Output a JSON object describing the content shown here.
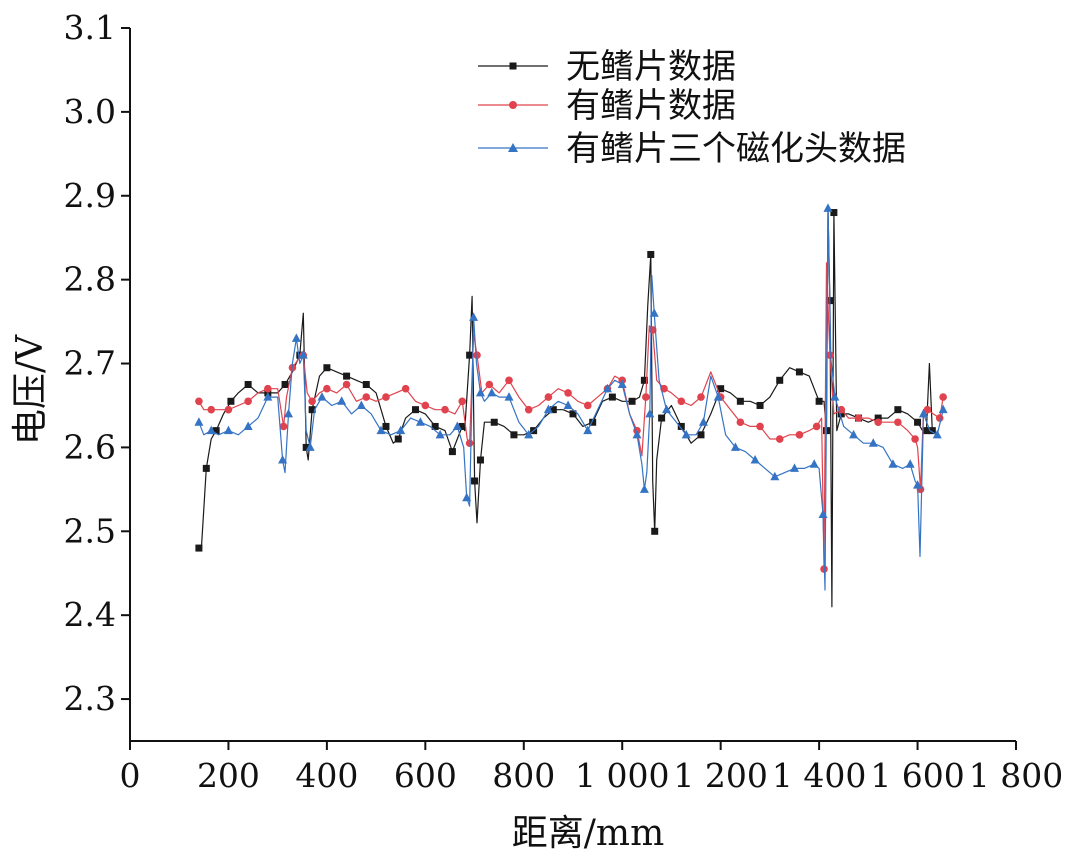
{
  "chart_data": {
    "type": "line",
    "title": "",
    "xlabel": "距离/mm",
    "ylabel": "电压/V",
    "xlim": [
      0,
      1800
    ],
    "ylim": [
      2.25,
      3.1
    ],
    "x_ticks": [
      0,
      200,
      400,
      600,
      800,
      1000,
      1200,
      1400,
      1600,
      1800
    ],
    "x_tick_labels": [
      "0",
      "200",
      "400",
      "600",
      "800",
      "1 000",
      "1 200",
      "1 400",
      "1 600",
      "1 800"
    ],
    "y_ticks": [
      2.3,
      2.4,
      2.5,
      2.6,
      2.7,
      2.8,
      2.9,
      3.0,
      3.1
    ],
    "y_tick_labels": [
      "2.3",
      "2.4",
      "2.5",
      "2.6",
      "2.7",
      "2.8",
      "2.9",
      "3.0",
      "3.1"
    ],
    "legend_position": "top-right",
    "series": [
      {
        "name": "无鳍片数据",
        "color": "#1a1a1a",
        "marker": "square",
        "x": [
          140,
          145,
          155,
          165,
          175,
          190,
          205,
          220,
          240,
          260,
          280,
          300,
          315,
          330,
          345,
          352,
          358,
          362,
          370,
          385,
          400,
          420,
          440,
          460,
          480,
          500,
          520,
          535,
          545,
          560,
          580,
          600,
          620,
          640,
          655,
          665,
          675,
          680,
          690,
          695,
          700,
          705,
          712,
          720,
          740,
          760,
          780,
          800,
          820,
          840,
          860,
          880,
          900,
          920,
          940,
          960,
          980,
          1000,
          1020,
          1035,
          1045,
          1052,
          1058,
          1062,
          1066,
          1070,
          1080,
          1100,
          1120,
          1140,
          1160,
          1180,
          1200,
          1220,
          1240,
          1260,
          1280,
          1300,
          1320,
          1340,
          1360,
          1380,
          1400,
          1410,
          1415,
          1418,
          1422,
          1426,
          1430,
          1436,
          1445,
          1460,
          1480,
          1500,
          1520,
          1540,
          1560,
          1580,
          1600,
          1610,
          1618,
          1624,
          1630
        ],
        "y": [
          2.48,
          2.48,
          2.575,
          2.61,
          2.62,
          2.64,
          2.655,
          2.665,
          2.675,
          2.665,
          2.665,
          2.665,
          2.675,
          2.69,
          2.71,
          2.76,
          2.6,
          2.585,
          2.645,
          2.685,
          2.695,
          2.69,
          2.685,
          2.68,
          2.675,
          2.665,
          2.625,
          2.605,
          2.61,
          2.635,
          2.645,
          2.64,
          2.625,
          2.62,
          2.595,
          2.61,
          2.625,
          2.62,
          2.71,
          2.78,
          2.56,
          2.51,
          2.585,
          2.63,
          2.63,
          2.625,
          2.615,
          2.615,
          2.62,
          2.635,
          2.645,
          2.645,
          2.64,
          2.625,
          2.63,
          2.655,
          2.66,
          2.655,
          2.655,
          2.66,
          2.68,
          2.77,
          2.83,
          2.56,
          2.5,
          2.585,
          2.635,
          2.65,
          2.625,
          2.605,
          2.615,
          2.64,
          2.67,
          2.665,
          2.655,
          2.655,
          2.65,
          2.66,
          2.68,
          2.695,
          2.69,
          2.685,
          2.655,
          2.655,
          2.62,
          2.885,
          2.775,
          2.41,
          2.88,
          2.62,
          2.64,
          2.64,
          2.635,
          2.63,
          2.635,
          2.635,
          2.645,
          2.64,
          2.63,
          2.62,
          2.62,
          2.7,
          2.62
        ]
      },
      {
        "name": "有鳍片数据",
        "color": "#e0434e",
        "marker": "circle",
        "x": [
          140,
          150,
          165,
          180,
          200,
          220,
          240,
          260,
          280,
          300,
          312,
          318,
          330,
          342,
          352,
          360,
          370,
          385,
          400,
          420,
          440,
          460,
          480,
          500,
          520,
          540,
          560,
          580,
          600,
          620,
          640,
          660,
          675,
          685,
          690,
          698,
          705,
          715,
          730,
          750,
          770,
          790,
          810,
          830,
          850,
          870,
          890,
          910,
          930,
          950,
          970,
          985,
          1000,
          1015,
          1030,
          1040,
          1048,
          1055,
          1062,
          1070,
          1085,
          1100,
          1120,
          1140,
          1160,
          1180,
          1200,
          1220,
          1240,
          1260,
          1280,
          1300,
          1320,
          1340,
          1360,
          1380,
          1395,
          1405,
          1410,
          1415,
          1422,
          1430,
          1445,
          1460,
          1480,
          1500,
          1520,
          1540,
          1560,
          1580,
          1595,
          1600,
          1606,
          1612,
          1620,
          1632,
          1645,
          1652
        ],
        "y": [
          2.655,
          2.645,
          2.645,
          2.645,
          2.645,
          2.65,
          2.655,
          2.665,
          2.67,
          2.67,
          2.625,
          2.66,
          2.695,
          2.705,
          2.71,
          2.665,
          2.655,
          2.665,
          2.67,
          2.665,
          2.675,
          2.655,
          2.66,
          2.655,
          2.66,
          2.665,
          2.67,
          2.655,
          2.65,
          2.645,
          2.645,
          2.64,
          2.655,
          2.61,
          2.605,
          2.735,
          2.71,
          2.665,
          2.675,
          2.665,
          2.68,
          2.66,
          2.645,
          2.65,
          2.66,
          2.67,
          2.665,
          2.655,
          2.65,
          2.66,
          2.67,
          2.685,
          2.68,
          2.64,
          2.62,
          2.59,
          2.66,
          2.745,
          2.74,
          2.68,
          2.67,
          2.665,
          2.655,
          2.65,
          2.66,
          2.69,
          2.66,
          2.645,
          2.63,
          2.625,
          2.625,
          2.61,
          2.61,
          2.615,
          2.615,
          2.62,
          2.625,
          2.635,
          2.455,
          2.82,
          2.71,
          2.64,
          2.645,
          2.635,
          2.635,
          2.635,
          2.63,
          2.63,
          2.63,
          2.62,
          2.61,
          2.6,
          2.55,
          2.645,
          2.645,
          2.64,
          2.635,
          2.66
        ]
      },
      {
        "name": "有鳍片三个磁化头数据",
        "color": "#3574c4",
        "marker": "triangle",
        "x": [
          140,
          150,
          165,
          180,
          200,
          220,
          240,
          260,
          280,
          300,
          310,
          315,
          322,
          330,
          338,
          345,
          352,
          358,
          366,
          375,
          390,
          410,
          430,
          450,
          470,
          490,
          510,
          530,
          550,
          570,
          590,
          610,
          630,
          650,
          665,
          678,
          684,
          690,
          698,
          704,
          712,
          720,
          735,
          750,
          770,
          790,
          810,
          830,
          850,
          870,
          890,
          910,
          930,
          950,
          970,
          985,
          1000,
          1015,
          1030,
          1040,
          1045,
          1050,
          1056,
          1060,
          1065,
          1075,
          1090,
          1110,
          1130,
          1150,
          1165,
          1180,
          1195,
          1210,
          1230,
          1250,
          1270,
          1290,
          1310,
          1330,
          1350,
          1370,
          1390,
          1400,
          1408,
          1412,
          1418,
          1424,
          1432,
          1450,
          1470,
          1490,
          1510,
          1530,
          1550,
          1570,
          1585,
          1595,
          1600,
          1605,
          1612,
          1625,
          1640,
          1652
        ],
        "y": [
          2.63,
          2.615,
          2.62,
          2.615,
          2.62,
          2.615,
          2.625,
          2.635,
          2.66,
          2.66,
          2.585,
          2.57,
          2.64,
          2.7,
          2.73,
          2.7,
          2.71,
          2.62,
          2.6,
          2.645,
          2.66,
          2.65,
          2.655,
          2.64,
          2.65,
          2.64,
          2.62,
          2.615,
          2.62,
          2.635,
          2.63,
          2.625,
          2.615,
          2.615,
          2.625,
          2.6,
          2.54,
          2.53,
          2.755,
          2.7,
          2.665,
          2.655,
          2.665,
          2.66,
          2.66,
          2.63,
          2.615,
          2.625,
          2.645,
          2.655,
          2.65,
          2.64,
          2.62,
          2.645,
          2.67,
          2.68,
          2.675,
          2.64,
          2.615,
          2.58,
          2.55,
          2.57,
          2.64,
          2.805,
          2.76,
          2.68,
          2.645,
          2.63,
          2.615,
          2.615,
          2.63,
          2.685,
          2.66,
          2.615,
          2.6,
          2.595,
          2.585,
          2.575,
          2.565,
          2.57,
          2.575,
          2.575,
          2.58,
          2.575,
          2.52,
          2.43,
          2.885,
          2.705,
          2.66,
          2.625,
          2.615,
          2.605,
          2.605,
          2.6,
          2.58,
          2.575,
          2.58,
          2.56,
          2.555,
          2.47,
          2.64,
          2.62,
          2.615,
          2.645
        ]
      }
    ]
  }
}
